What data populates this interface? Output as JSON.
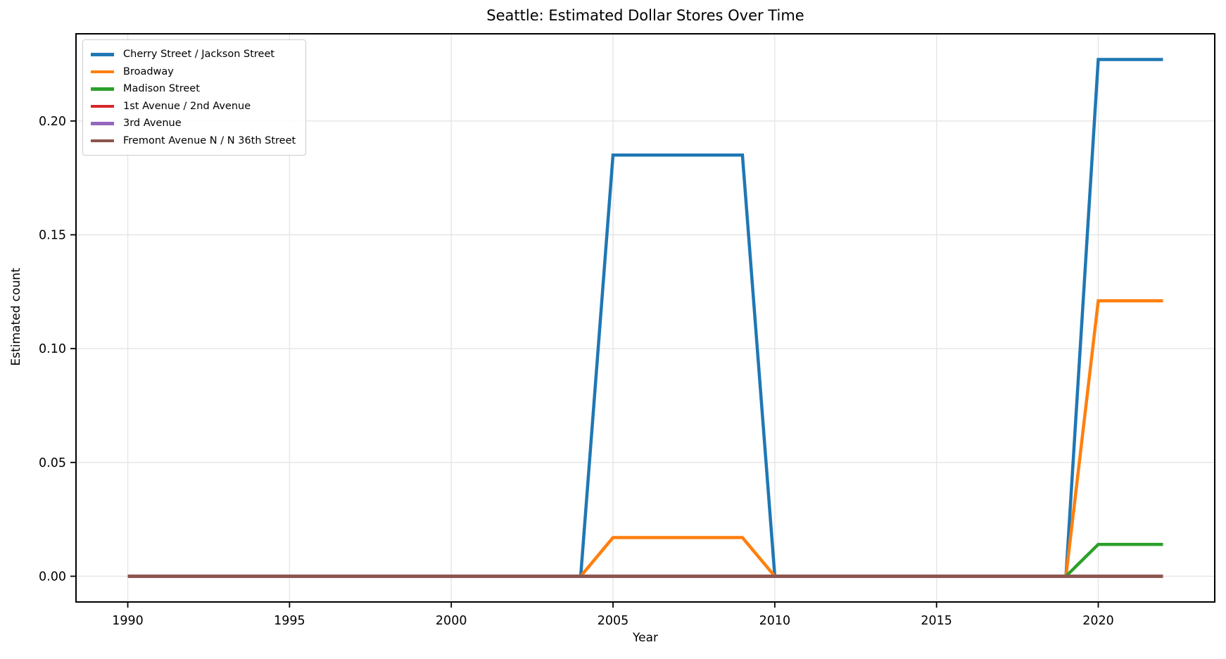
{
  "chart_data": {
    "type": "line",
    "title": "Seattle: Estimated Dollar Stores Over Time",
    "xlabel": "Year",
    "ylabel": "Estimated count",
    "xlim": [
      1988.4,
      2023.6
    ],
    "ylim": [
      -0.0113,
      0.2383
    ],
    "x_ticks": {
      "values": [
        1990,
        1995,
        2000,
        2005,
        2010,
        2015,
        2020
      ],
      "labels": [
        "1990",
        "1995",
        "2000",
        "2005",
        "2010",
        "2015",
        "2020"
      ]
    },
    "y_ticks": {
      "values": [
        0.0,
        0.05,
        0.1,
        0.15,
        0.2
      ],
      "labels": [
        "0.00",
        "0.05",
        "0.10",
        "0.15",
        "0.20"
      ]
    },
    "grid": true,
    "grid_color": "#e6e6e6",
    "spine_color": "#000000",
    "legend_position": "upper-left",
    "series": [
      {
        "name": "Cherry Street / Jackson Street",
        "color": "#1f77b4",
        "points": [
          [
            1990,
            0
          ],
          [
            2004,
            0
          ],
          [
            2005,
            0.185
          ],
          [
            2009,
            0.185
          ],
          [
            2010,
            0
          ],
          [
            2019,
            0
          ],
          [
            2020,
            0.227
          ],
          [
            2022,
            0.227
          ]
        ]
      },
      {
        "name": "Broadway",
        "color": "#ff7f0e",
        "points": [
          [
            1990,
            0
          ],
          [
            2004,
            0
          ],
          [
            2005,
            0.017
          ],
          [
            2009,
            0.017
          ],
          [
            2010,
            0
          ],
          [
            2019,
            0
          ],
          [
            2020,
            0.121
          ],
          [
            2022,
            0.121
          ]
        ]
      },
      {
        "name": "Madison Street",
        "color": "#2ca02c",
        "points": [
          [
            1990,
            0
          ],
          [
            2019,
            0
          ],
          [
            2020,
            0.014
          ],
          [
            2022,
            0.014
          ]
        ]
      },
      {
        "name": "1st Avenue / 2nd Avenue",
        "color": "#d62728",
        "points": [
          [
            1990,
            0
          ],
          [
            2022,
            0
          ]
        ]
      },
      {
        "name": "3rd Avenue",
        "color": "#9467bd",
        "points": [
          [
            1990,
            0
          ],
          [
            2022,
            0
          ]
        ]
      },
      {
        "name": "Fremont Avenue N / N 36th Street",
        "color": "#8c564b",
        "points": [
          [
            1990,
            0
          ],
          [
            2022,
            0
          ]
        ]
      }
    ]
  }
}
